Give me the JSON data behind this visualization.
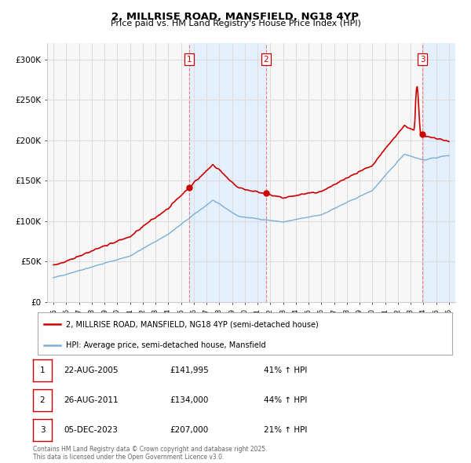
{
  "title_line1": "2, MILLRISE ROAD, MANSFIELD, NG18 4YP",
  "title_line2": "Price paid vs. HM Land Registry's House Price Index (HPI)",
  "legend_line1": "2, MILLRISE ROAD, MANSFIELD, NG18 4YP (semi-detached house)",
  "legend_line2": "HPI: Average price, semi-detached house, Mansfield",
  "footer": "Contains HM Land Registry data © Crown copyright and database right 2025.\nThis data is licensed under the Open Government Licence v3.0.",
  "property_color": "#cc0000",
  "hpi_color": "#7bafd4",
  "shade_color": "#ddeeff",
  "sale_markers": [
    {
      "num": 1,
      "date": "22-AUG-2005",
      "price": "£141,995",
      "pct": "41% ↑ HPI",
      "year": 2005.646
    },
    {
      "num": 2,
      "date": "26-AUG-2011",
      "price": "£134,000",
      "pct": "44% ↑ HPI",
      "year": 2011.646
    },
    {
      "num": 3,
      "date": "05-DEC-2023",
      "price": "£207,000",
      "pct": "21% ↑ HPI",
      "year": 2023.922
    }
  ],
  "ylim": [
    0,
    320000
  ],
  "xlim": [
    1994.5,
    2026.5
  ],
  "yticks": [
    0,
    50000,
    100000,
    150000,
    200000,
    250000,
    300000
  ],
  "ytick_labels": [
    "£0",
    "£50K",
    "£100K",
    "£150K",
    "£200K",
    "£250K",
    "£300K"
  ],
  "xticks": [
    1995,
    1996,
    1997,
    1998,
    1999,
    2000,
    2001,
    2002,
    2003,
    2004,
    2005,
    2006,
    2007,
    2008,
    2009,
    2010,
    2011,
    2012,
    2013,
    2014,
    2015,
    2016,
    2017,
    2018,
    2019,
    2020,
    2021,
    2022,
    2023,
    2024,
    2025,
    2026
  ],
  "bg_color": "#ffffff",
  "plot_bg_color": "#f7f7f7",
  "grid_color": "#dddddd"
}
